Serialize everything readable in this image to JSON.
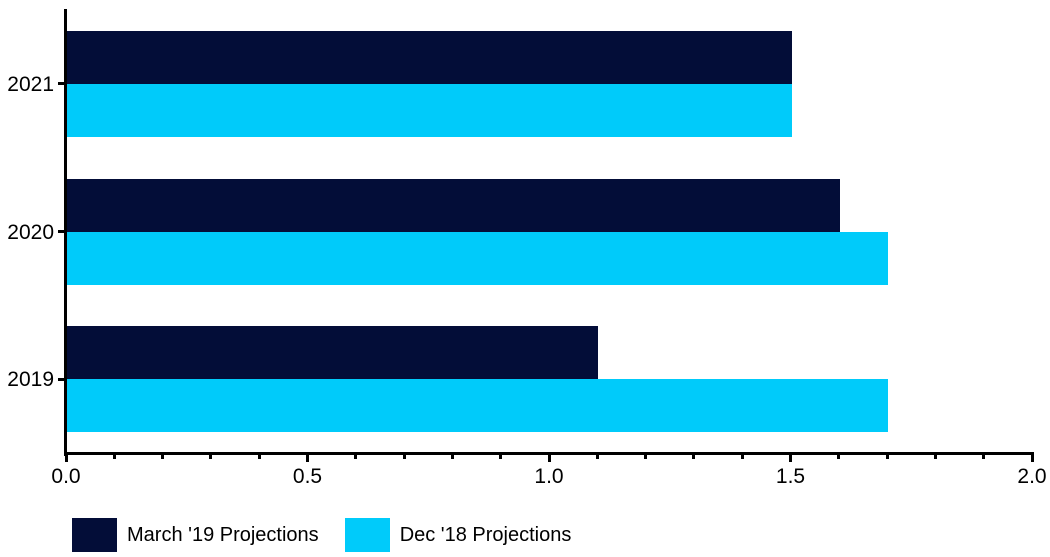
{
  "chart_data": {
    "type": "bar",
    "orientation": "horizontal",
    "title": "",
    "xlabel": "",
    "ylabel": "",
    "grid": false,
    "legend_position": "bottom-left",
    "categories": [
      "2021",
      "2020",
      "2019"
    ],
    "series": [
      {
        "name": "March '19 Projections",
        "color": "#030d38",
        "values": [
          1.5,
          1.6,
          1.1
        ]
      },
      {
        "name": "Dec '18 Projections",
        "color": "#00cbfa",
        "values": [
          1.5,
          1.7,
          1.7
        ]
      }
    ],
    "xlim": [
      0,
      2
    ],
    "x_major_ticks": [
      {
        "value": 0.0,
        "label": "0.0"
      },
      {
        "value": 0.5,
        "label": "0.5"
      },
      {
        "value": 1.0,
        "label": "1.0"
      },
      {
        "value": 1.5,
        "label": "1.5"
      },
      {
        "value": 2.0,
        "label": "2.0"
      }
    ],
    "x_minor_step": 0.1
  },
  "colors": {
    "axis": "#000000",
    "text": "#000000",
    "background": "#ffffff"
  }
}
